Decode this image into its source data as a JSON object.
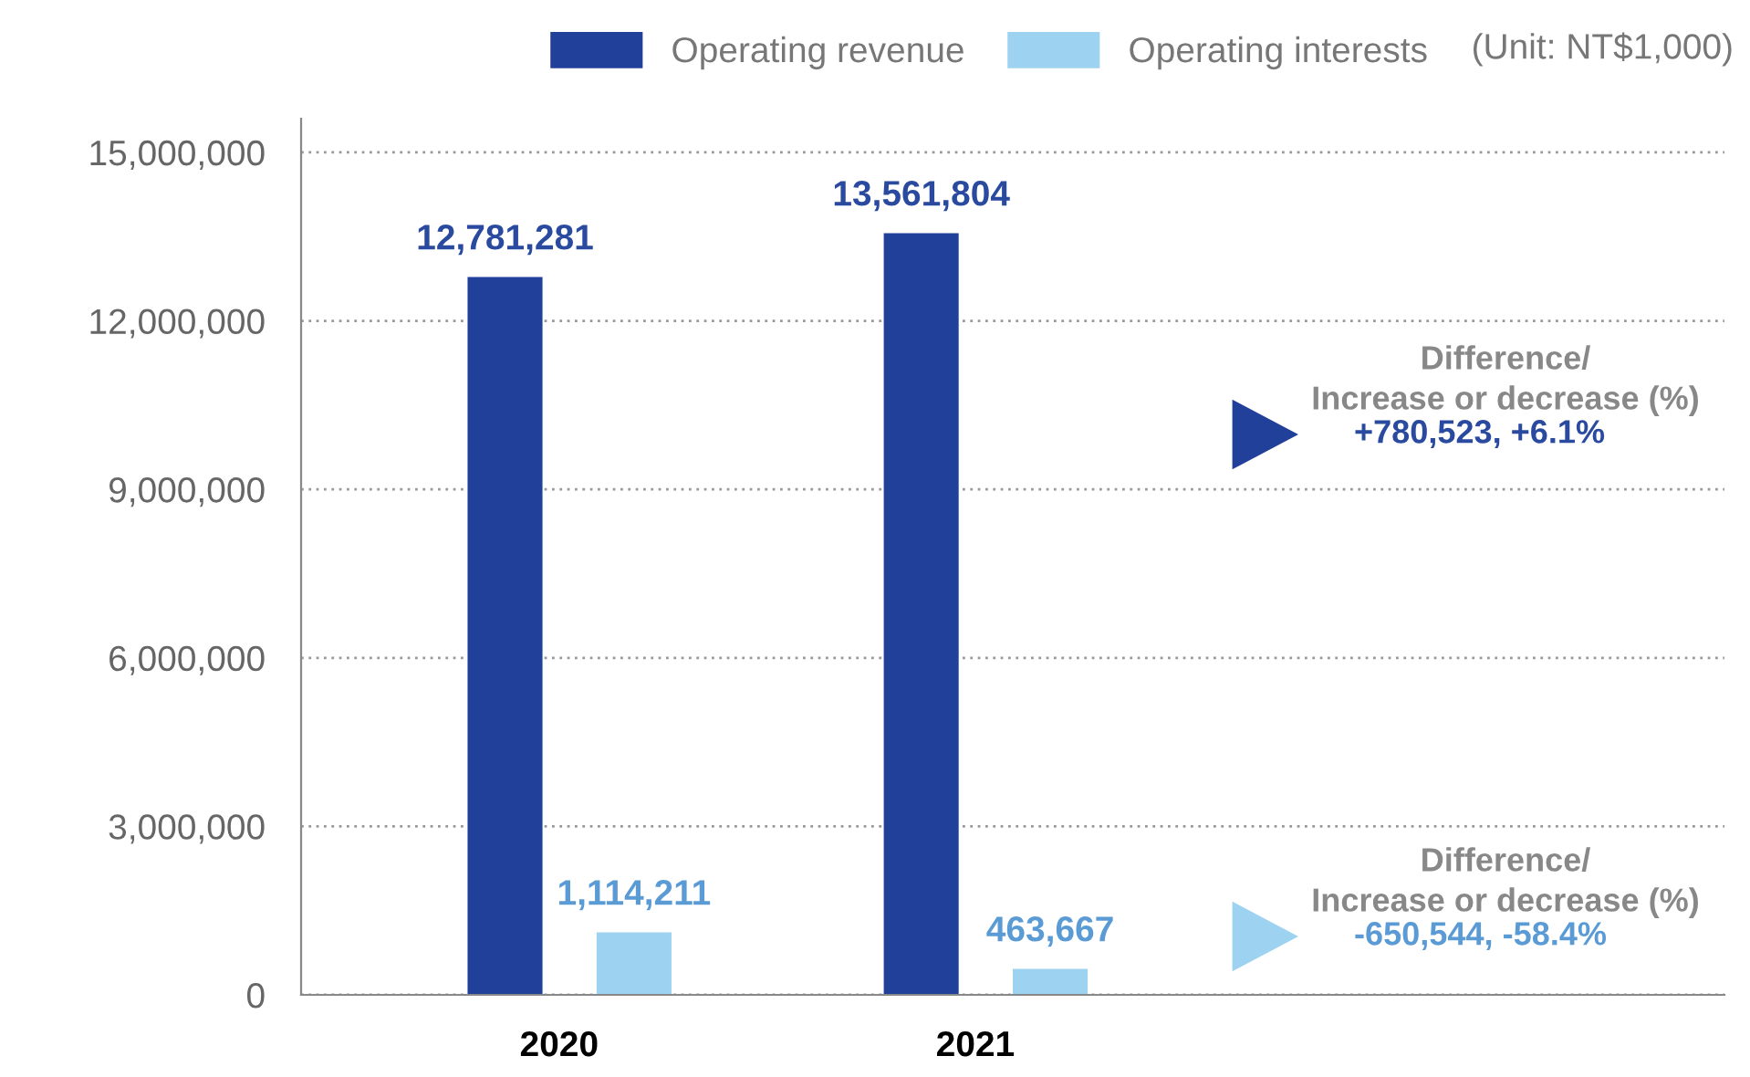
{
  "chart_data": {
    "type": "bar",
    "categories": [
      "2020",
      "2021"
    ],
    "series": [
      {
        "name": "Operating revenue",
        "color": "#21409a",
        "values": [
          12781281,
          13561804
        ],
        "value_labels": [
          "12,781,281",
          "13,561,804"
        ]
      },
      {
        "name": "Operating interests",
        "color": "#9dd3f1",
        "values": [
          1114211,
          463667
        ],
        "value_labels": [
          "1,114,211",
          "463,667"
        ]
      }
    ],
    "ylim": [
      0,
      15600000
    ],
    "yticks": [
      {
        "value": 0,
        "label": "0"
      },
      {
        "value": 3000000,
        "label": "3,000,000"
      },
      {
        "value": 6000000,
        "label": "6,000,000"
      },
      {
        "value": 9000000,
        "label": "9,000,000"
      },
      {
        "value": 12000000,
        "label": "12,000,000"
      },
      {
        "value": 15000000,
        "label": "15,000,000"
      }
    ],
    "grid": "y",
    "legend": "top right",
    "annotations": [
      "(Unit: NT$1,000)",
      "Difference/\nIncrease or decrease (%)",
      "+780,523, +6.1%",
      "Difference/\nIncrease or decrease (%)",
      "-650,544, -58.4%"
    ]
  }
}
